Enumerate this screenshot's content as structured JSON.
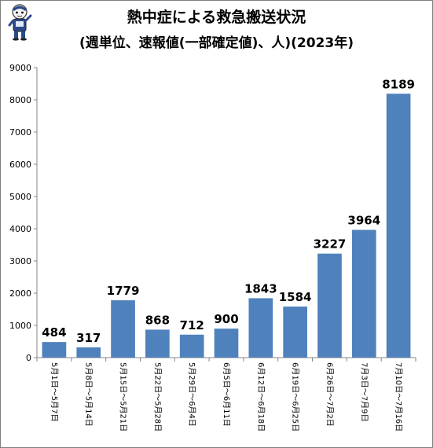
{
  "chart_data": {
    "type": "bar",
    "title": "熱中症による救急搬送状況",
    "subtitle": "(週単位、速報値(一部確定値)、人)(2023年)",
    "categories": [
      "5月1日～5月7日",
      "5月8日～5月14日",
      "5月15日～5月21日",
      "5月22日～5月28日",
      "5月29日～6月4日",
      "6月5日～6月11日",
      "6月12日～6月18日",
      "6月19日～6月25日",
      "6月26日～7月2日",
      "7月3日～7月9日",
      "7月10日～7月16日"
    ],
    "values": [
      484,
      317,
      1779,
      868,
      712,
      900,
      1843,
      1584,
      3227,
      3964,
      8189
    ],
    "ylim": [
      0,
      9000
    ],
    "ytick_step": 1000,
    "yticks": [
      "0",
      "1000",
      "2000",
      "3000",
      "4000",
      "5000",
      "6000",
      "7000",
      "8000",
      "9000"
    ],
    "grid": false,
    "legend": "none",
    "bar_color": "#4f81bd"
  }
}
